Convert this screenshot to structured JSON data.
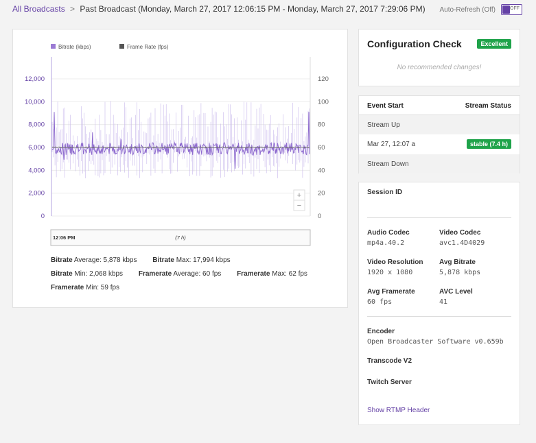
{
  "breadcrumb": {
    "root": "All Broadcasts",
    "separator": ">",
    "title": "Past Broadcast (Monday, March 27, 2017 12:06:15 PM - Monday, March 27, 2017 7:29:06 PM)"
  },
  "auto_refresh": {
    "label": "Auto-Refresh (Off)",
    "toggle_text": "OFF"
  },
  "chart": {
    "legend": [
      {
        "name": "Bitrate (kbps)",
        "color": "#9b7bd4"
      },
      {
        "name": "Frame Rate (fps)",
        "color": "#555555"
      }
    ],
    "left_ticks": [
      "12,000",
      "10,000",
      "8,000",
      "6,000",
      "4,000",
      "2,000",
      "0"
    ],
    "right_ticks": [
      "120",
      "100",
      "80",
      "60",
      "40",
      "20",
      "0"
    ],
    "zoom_in": "+",
    "zoom_out": "−",
    "nav_start": "12:06 PM",
    "nav_duration": "(7 h)"
  },
  "chart_data": {
    "type": "line",
    "x_range": [
      "12:06 PM",
      "7:29 PM"
    ],
    "series": [
      {
        "name": "Bitrate (kbps)",
        "axis": "left",
        "ylim": [
          0,
          12000
        ],
        "typical": 5878,
        "min": 2068,
        "max": 17994,
        "color": "#9b7bd4"
      },
      {
        "name": "Frame Rate (fps)",
        "axis": "right",
        "ylim": [
          0,
          120
        ],
        "typical": 60,
        "min": 59,
        "max": 62,
        "color": "#555555"
      }
    ]
  },
  "stats": {
    "bitrate_avg_label": "Bitrate",
    "bitrate_avg_text": " Average: 5,878 kbps",
    "bitrate_max_label": "Bitrate",
    "bitrate_max_text": " Max: 17,994 kbps",
    "bitrate_min_label": "Bitrate",
    "bitrate_min_text": " Min: 2,068 kbps",
    "framerate_avg_label": "Framerate",
    "framerate_avg_text": " Average: 60 fps",
    "framerate_max_label": "Framerate",
    "framerate_max_text": " Max: 62 fps",
    "framerate_min_label": "Framerate",
    "framerate_min_text": " Min: 59 fps"
  },
  "config": {
    "title": "Configuration Check",
    "badge": "Excellent",
    "badge_color": "#1fa34a",
    "message": "No recommended changes!"
  },
  "events": {
    "head_left": "Event Start",
    "head_right": "Stream Status",
    "rows": [
      {
        "label": "Stream Up"
      },
      {
        "label": "Mar 27, 12:07 a",
        "badge": "stable (7.4 h)"
      },
      {
        "label": "Stream Down"
      }
    ]
  },
  "session": {
    "id_label": "Session ID",
    "audio_codec_label": "Audio Codec",
    "audio_codec": "mp4a.40.2",
    "video_codec_label": "Video Codec",
    "video_codec": "avc1.4D4029",
    "video_res_label": "Video Resolution",
    "video_res": "1920 x 1080",
    "avg_bitrate_label": "Avg Bitrate",
    "avg_bitrate": "5,878 kbps",
    "avg_framerate_label": "Avg Framerate",
    "avg_framerate": "60 fps",
    "avc_level_label": "AVC Level",
    "avc_level": "41",
    "encoder_label": "Encoder",
    "encoder": "Open Broadcaster Software v0.659b",
    "transcode_label": "Transcode V2",
    "server_label": "Twitch Server",
    "rtmp_link": "Show RTMP Header"
  },
  "accent": "#6441a5"
}
